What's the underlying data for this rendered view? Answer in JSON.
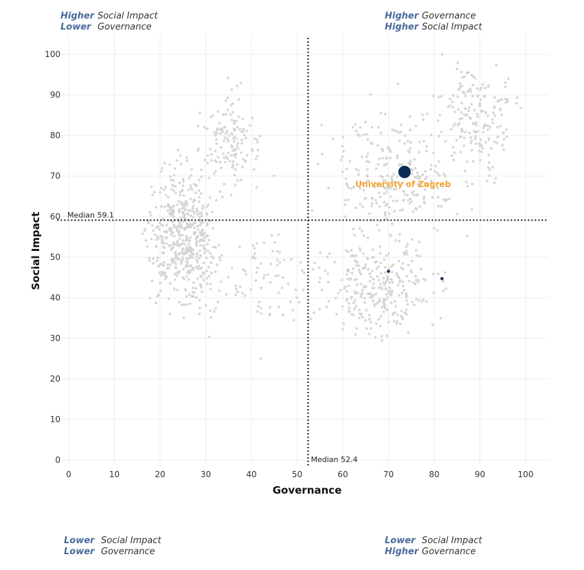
{
  "quadrants": {
    "top_left": {
      "line1_kw": "Higher",
      "line1_text": "Social Impact",
      "line2_kw": "Lower",
      "line2_text": "Governance"
    },
    "top_right": {
      "line1_kw": "Higher",
      "line1_text": "Governance",
      "line2_kw": "Higher",
      "line2_text": "Social Impact"
    },
    "bottom_left": {
      "line1_kw": "Lower",
      "line1_text": "Social Impact",
      "line2_kw": "Lower",
      "line2_text": "Governance"
    },
    "bottom_right": {
      "line1_kw": "Lower",
      "line1_text": "Social Impact",
      "line2_kw": "Higher",
      "line2_text": "Governance"
    }
  },
  "chart_data": {
    "type": "scatter",
    "title": "",
    "xlabel": "Governance",
    "ylabel": "Social Impact",
    "xlim": [
      -1,
      105
    ],
    "ylim": [
      -1,
      105
    ],
    "xticks": [
      0,
      10,
      20,
      30,
      40,
      50,
      60,
      70,
      80,
      90,
      100
    ],
    "yticks": [
      0,
      10,
      20,
      30,
      40,
      50,
      60,
      70,
      80,
      90,
      100
    ],
    "grid": true,
    "median_x": {
      "value": 52.4,
      "label": "Median 52.4"
    },
    "median_y": {
      "value": 59.1,
      "label": "Median 59.1"
    },
    "focus": {
      "name": "University of Zagreb",
      "x": 73.5,
      "y": 71.0
    },
    "highlighted": [
      {
        "x": 70.0,
        "y": 46.5
      },
      {
        "x": 81.7,
        "y": 44.7
      }
    ],
    "background_clusters": [
      {
        "cx": 25,
        "cy": 55,
        "sx": 5.5,
        "sy": 11,
        "n": 520
      },
      {
        "cx": 36,
        "cy": 78,
        "sx": 4,
        "sy": 8,
        "n": 140
      },
      {
        "cx": 43,
        "cy": 45,
        "sx": 6,
        "sy": 10,
        "n": 70
      },
      {
        "cx": 68,
        "cy": 43,
        "sx": 9,
        "sy": 9,
        "n": 300
      },
      {
        "cx": 72,
        "cy": 70,
        "sx": 10,
        "sy": 10,
        "n": 260
      },
      {
        "cx": 90,
        "cy": 85,
        "sx": 6,
        "sy": 9,
        "n": 180
      }
    ],
    "colors": {
      "background": "#d3d3d3",
      "focus": "#0b2b55",
      "highlight": "#0b2b55",
      "label": "#f0a330",
      "median": "#111111",
      "grid": "#ececec"
    }
  }
}
